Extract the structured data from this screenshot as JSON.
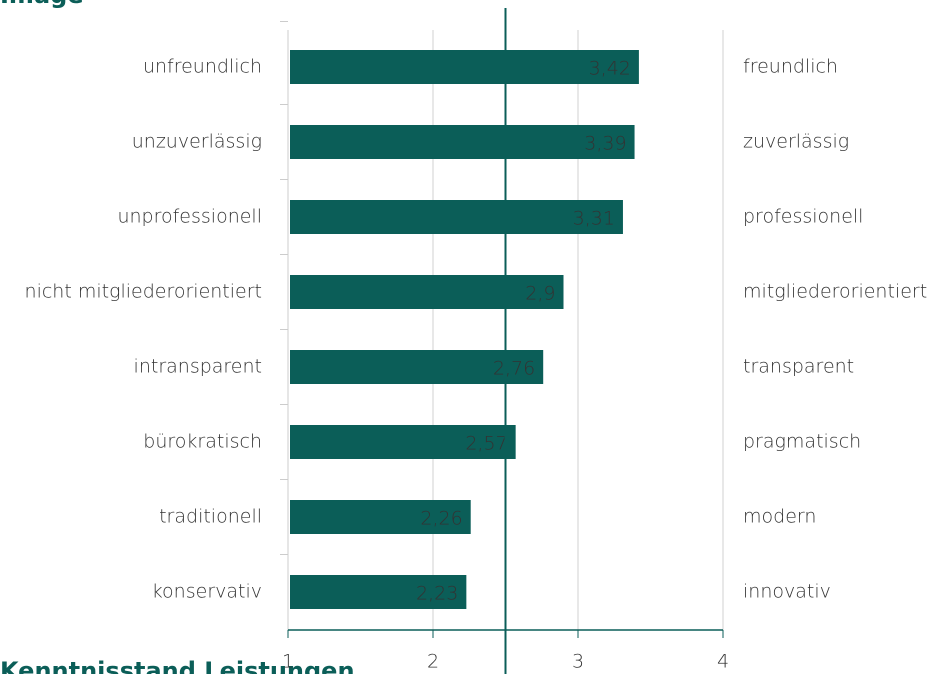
{
  "chart_data": {
    "type": "bar",
    "orientation": "horizontal",
    "title": "Image",
    "categories": [
      "unfreundlich",
      "unzuverlässig",
      "unprofessionell",
      "nicht mitgliederorientiert",
      "intransparent",
      "bürokratisch",
      "traditionell",
      "konservativ"
    ],
    "right_labels": [
      "freundlich",
      "zuverlässig",
      "professionell",
      "mitgliederorientiert",
      "transparent",
      "pragmatisch",
      "modern",
      "innovativ"
    ],
    "values": [
      3.42,
      3.39,
      3.31,
      2.9,
      2.76,
      2.57,
      2.26,
      2.23
    ],
    "value_labels": [
      "3,42",
      "3,39",
      "3,31",
      "2,9",
      "2,76",
      "2,57",
      "2,26",
      "2,23"
    ],
    "color": "#0b5e58",
    "xlim": [
      1,
      4
    ],
    "xticks": [
      1,
      2,
      3,
      4
    ],
    "grid": true,
    "reference_line": 2.5
  },
  "next_section": {
    "title": "Kenntnisstand Leistungen"
  }
}
